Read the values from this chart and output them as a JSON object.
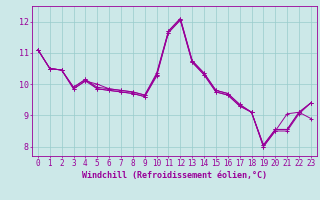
{
  "xlabel": "Windchill (Refroidissement éolien,°C)",
  "bg_color": "#cce8e8",
  "line_color": "#990099",
  "grid_color": "#99cccc",
  "x_ticks": [
    0,
    1,
    2,
    3,
    4,
    5,
    6,
    7,
    8,
    9,
    10,
    11,
    12,
    13,
    14,
    15,
    16,
    17,
    18,
    19,
    20,
    21,
    22,
    23
  ],
  "y_ticks": [
    8,
    9,
    10,
    11,
    12
  ],
  "ylim": [
    7.7,
    12.5
  ],
  "xlim": [
    -0.5,
    23.5
  ],
  "series": [
    [
      11.1,
      10.5,
      10.45,
      9.85,
      10.1,
      10.0,
      9.85,
      9.8,
      9.75,
      9.65,
      10.3,
      11.7,
      12.1,
      10.75,
      10.35,
      9.8,
      9.7,
      9.35,
      9.1,
      8.05,
      8.55,
      8.55,
      9.1,
      8.9
    ],
    [
      11.1,
      10.5,
      10.45,
      9.85,
      10.1,
      9.85,
      9.8,
      9.75,
      9.7,
      9.6,
      10.25,
      11.65,
      12.05,
      10.7,
      10.3,
      9.75,
      9.65,
      9.3,
      9.1,
      8.0,
      8.5,
      8.5,
      9.05,
      9.4
    ],
    [
      11.1,
      10.5,
      10.45,
      9.9,
      10.15,
      9.85,
      9.8,
      9.75,
      9.7,
      9.6,
      10.3,
      11.65,
      12.05,
      10.7,
      10.3,
      9.75,
      9.65,
      9.3,
      9.1,
      8.0,
      8.5,
      9.05,
      9.1,
      9.4
    ],
    [
      11.1,
      10.5,
      10.45,
      9.9,
      10.15,
      9.9,
      9.85,
      9.8,
      9.75,
      9.65,
      10.35,
      11.7,
      12.1,
      10.75,
      10.35,
      9.8,
      9.7,
      9.35,
      9.1,
      8.05,
      8.55,
      8.55,
      9.1,
      9.4
    ]
  ],
  "tick_fontsize": 5.5,
  "xlabel_fontsize": 6.0
}
